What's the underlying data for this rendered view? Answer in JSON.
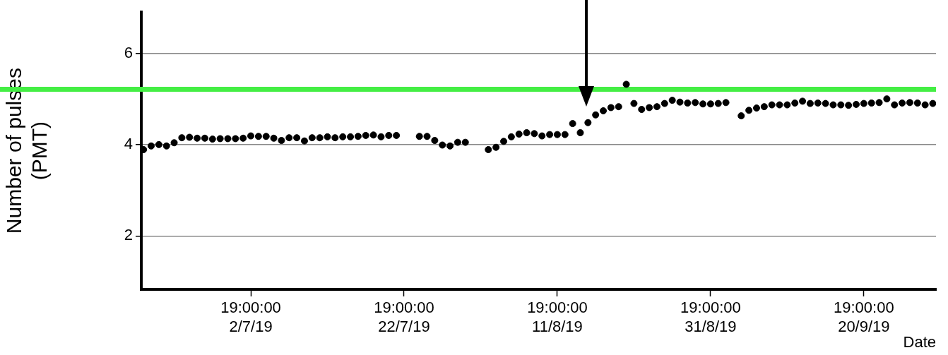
{
  "chart_data": {
    "type": "scatter",
    "xlabel": "Date",
    "ylabel": "Number of pulses\n(PMT)",
    "x": [
      "2019-06-18T19:00",
      "2019-06-19T19:00",
      "2019-06-20T19:00",
      "2019-06-21T19:00",
      "2019-06-22T19:00",
      "2019-06-23T19:00",
      "2019-06-24T19:00",
      "2019-06-25T19:00",
      "2019-06-26T19:00",
      "2019-06-27T19:00",
      "2019-06-28T19:00",
      "2019-06-29T19:00",
      "2019-06-30T19:00",
      "2019-07-01T19:00",
      "2019-07-02T19:00",
      "2019-07-03T19:00",
      "2019-07-04T19:00",
      "2019-07-05T19:00",
      "2019-07-06T19:00",
      "2019-07-07T19:00",
      "2019-07-08T19:00",
      "2019-07-09T19:00",
      "2019-07-10T19:00",
      "2019-07-11T19:00",
      "2019-07-12T19:00",
      "2019-07-13T19:00",
      "2019-07-14T19:00",
      "2019-07-15T19:00",
      "2019-07-16T19:00",
      "2019-07-17T19:00",
      "2019-07-18T19:00",
      "2019-07-19T19:00",
      "2019-07-20T19:00",
      "2019-07-21T19:00",
      "2019-07-24T19:00",
      "2019-07-25T19:00",
      "2019-07-26T19:00",
      "2019-07-27T19:00",
      "2019-07-28T19:00",
      "2019-07-29T19:00",
      "2019-07-30T19:00",
      "2019-08-02T19:00",
      "2019-08-03T19:00",
      "2019-08-04T19:00",
      "2019-08-05T19:00",
      "2019-08-06T19:00",
      "2019-08-07T19:00",
      "2019-08-08T19:00",
      "2019-08-09T19:00",
      "2019-08-10T19:00",
      "2019-08-11T19:00",
      "2019-08-12T19:00",
      "2019-08-13T19:00",
      "2019-08-14T19:00",
      "2019-08-15T19:00",
      "2019-08-16T19:00",
      "2019-08-17T19:00",
      "2019-08-18T19:00",
      "2019-08-19T19:00",
      "2019-08-20T19:00",
      "2019-08-21T19:00",
      "2019-08-22T19:00",
      "2019-08-23T19:00",
      "2019-08-24T19:00",
      "2019-08-25T19:00",
      "2019-08-26T19:00",
      "2019-08-27T19:00",
      "2019-08-28T19:00",
      "2019-08-29T19:00",
      "2019-08-30T19:00",
      "2019-08-31T19:00",
      "2019-09-01T19:00",
      "2019-09-02T19:00",
      "2019-09-04T19:00",
      "2019-09-05T19:00",
      "2019-09-06T19:00",
      "2019-09-07T19:00",
      "2019-09-08T19:00",
      "2019-09-09T19:00",
      "2019-09-10T19:00",
      "2019-09-11T19:00",
      "2019-09-12T19:00",
      "2019-09-13T19:00",
      "2019-09-14T19:00",
      "2019-09-15T19:00",
      "2019-09-16T19:00",
      "2019-09-17T19:00",
      "2019-09-18T19:00",
      "2019-09-19T19:00",
      "2019-09-20T19:00",
      "2019-09-21T19:00",
      "2019-09-22T19:00",
      "2019-09-23T19:00",
      "2019-09-24T19:00",
      "2019-09-25T19:00",
      "2019-09-26T19:00",
      "2019-09-27T19:00",
      "2019-09-28T19:00",
      "2019-09-29T19:00"
    ],
    "series": [
      {
        "color": "#000000",
        "values": [
          3.89,
          3.97,
          4.0,
          3.97,
          4.04,
          4.15,
          4.16,
          4.14,
          4.14,
          4.12,
          4.13,
          4.13,
          4.13,
          4.14,
          4.19,
          4.18,
          4.18,
          4.14,
          4.09,
          4.15,
          4.15,
          4.08,
          4.15,
          4.15,
          4.17,
          4.15,
          4.17,
          4.17,
          4.18,
          4.2,
          4.21,
          4.17,
          4.2,
          4.2,
          4.18,
          4.18,
          4.09,
          3.99,
          3.97,
          4.05,
          4.05,
          3.89,
          3.94,
          4.07,
          4.17,
          4.23,
          4.26,
          4.24,
          4.19,
          4.22,
          4.22,
          4.22,
          4.46,
          4.26,
          4.48,
          4.65,
          4.74,
          4.81,
          4.83,
          5.32,
          4.9,
          4.77,
          4.81,
          4.83,
          4.9,
          4.97,
          4.93,
          4.91,
          4.92,
          4.89,
          4.89,
          4.9,
          4.92,
          4.63,
          4.75,
          4.8,
          4.83,
          4.87,
          4.87,
          4.87,
          4.91,
          4.95,
          4.9,
          4.91,
          4.9,
          4.87,
          4.87,
          4.86,
          4.88,
          4.9,
          4.91,
          4.92,
          5.0,
          4.87,
          4.91,
          4.92,
          4.91,
          4.87,
          4.9
        ]
      }
    ],
    "xlim": [
      "2019-06-18T12:00",
      "2019-09-30T05:00"
    ],
    "xticks": [
      {
        "value": "2019-07-02T19:00",
        "label": "19:00:00\n2/7/19"
      },
      {
        "value": "2019-07-22T19:00",
        "label": "19:00:00\n22/7/19"
      },
      {
        "value": "2019-08-11T19:00",
        "label": "19:00:00\n11/8/19"
      },
      {
        "value": "2019-08-31T19:00",
        "label": "19:00:00\n31/8/19"
      },
      {
        "value": "2019-09-20T19:00",
        "label": "19:00:00\n20/9/19"
      }
    ],
    "ylim": [
      0.83,
      6.9
    ],
    "yticks": [
      2,
      4,
      6
    ],
    "grid": "y",
    "marker": "circle",
    "ref_lines": [
      {
        "axis": "y",
        "value": 5.21,
        "color": "#44ee44"
      }
    ]
  }
}
